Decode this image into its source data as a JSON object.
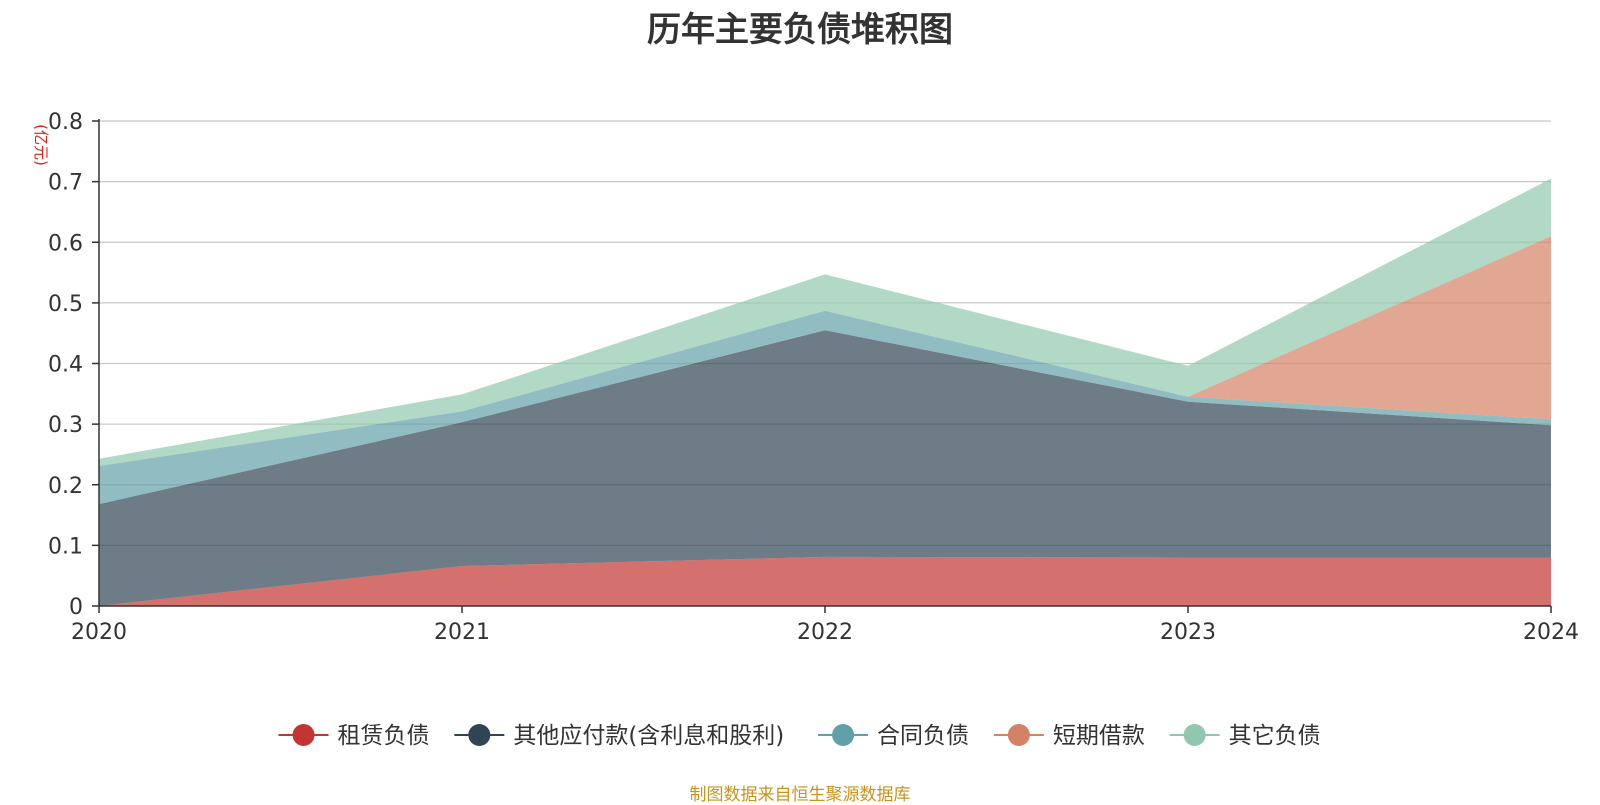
{
  "title": "历年主要负债堆积图",
  "source_note": "制图数据来自恒生聚源数据库",
  "chart_data": {
    "type": "area",
    "stacked": true,
    "x": [
      "2020",
      "2021",
      "2022",
      "2023",
      "2024"
    ],
    "y_unit_label": "(亿元)",
    "ylim": [
      0,
      0.8
    ],
    "yticks": [
      "0",
      "0.1",
      "0.2",
      "0.3",
      "0.4",
      "0.5",
      "0.6",
      "0.7",
      "0.8"
    ],
    "grid": true,
    "legend_position": "bottom",
    "series": [
      {
        "name": "租赁负债",
        "color": "#c23531",
        "values": [
          0.0,
          0.066,
          0.081,
          0.08,
          0.08
        ]
      },
      {
        "name": "其他应付款(含利息和股利)",
        "color": "#2f4554",
        "values": [
          0.168,
          0.237,
          0.374,
          0.257,
          0.218
        ]
      },
      {
        "name": "合同负债",
        "color": "#61a0a8",
        "values": [
          0.063,
          0.018,
          0.032,
          0.008,
          0.01
        ]
      },
      {
        "name": "短期借款",
        "color": "#d48265",
        "values": [
          0.0,
          0.0,
          0.0,
          0.0,
          0.302
        ]
      },
      {
        "name": "其它负债",
        "color": "#91c7ae",
        "values": [
          0.012,
          0.028,
          0.06,
          0.051,
          0.095
        ]
      }
    ]
  }
}
